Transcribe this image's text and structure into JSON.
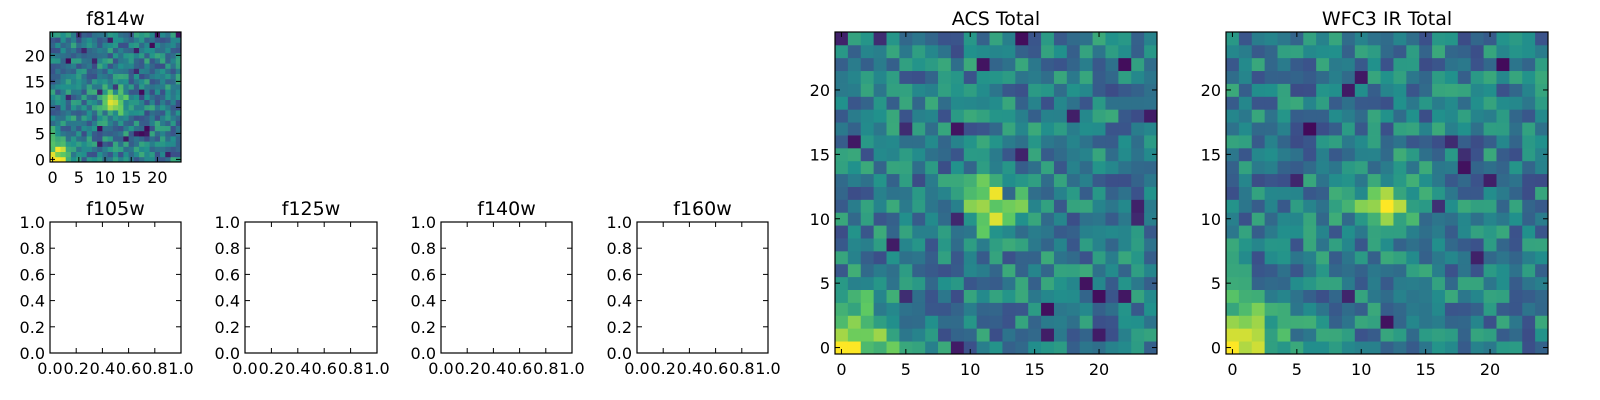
{
  "figure": {
    "colormap": "viridis",
    "colormap_stops": [
      "#440154",
      "#3b528b",
      "#21918c",
      "#5ec962",
      "#fde725"
    ]
  },
  "chart_data": [
    {
      "id": "f814w",
      "type": "heatmap",
      "title": "f814w",
      "grid_size": 25,
      "xlim": [
        -0.5,
        24.5
      ],
      "ylim": [
        -0.5,
        24.5
      ],
      "xticks": [
        0,
        5,
        10,
        15,
        20
      ],
      "yticks": [
        0,
        5,
        10,
        15,
        20
      ],
      "xtick_labels": [
        "0",
        "5",
        "10",
        "15",
        "20"
      ],
      "ytick_labels": [
        "0",
        "5",
        "10",
        "15",
        "20"
      ],
      "values_description": "25x25 noisy image; bright source near (12,11) and bright corner at origin",
      "sources": [
        {
          "x": 12,
          "y": 11,
          "amp": 0.45,
          "sigma": 1.6
        },
        {
          "x": 0,
          "y": 0,
          "amp": 0.6,
          "sigma": 2.5
        }
      ]
    },
    {
      "id": "f105w",
      "type": "empty",
      "title": "f105w",
      "xlim": [
        0,
        1
      ],
      "ylim": [
        0,
        1
      ],
      "xticks": [
        0,
        0.2,
        0.4,
        0.6,
        0.8,
        1.0
      ],
      "yticks": [
        0,
        0.2,
        0.4,
        0.6,
        0.8,
        1.0
      ],
      "xtick_labels": [
        "0.0",
        "0.2",
        "0.4",
        "0.6",
        "0.8",
        "1.0"
      ],
      "ytick_labels": [
        "0.0",
        "0.2",
        "0.4",
        "0.6",
        "0.8",
        "1.0"
      ]
    },
    {
      "id": "f125w",
      "type": "empty",
      "title": "f125w",
      "xlim": [
        0,
        1
      ],
      "ylim": [
        0,
        1
      ],
      "xticks": [
        0,
        0.2,
        0.4,
        0.6,
        0.8,
        1.0
      ],
      "yticks": [
        0,
        0.2,
        0.4,
        0.6,
        0.8,
        1.0
      ],
      "xtick_labels": [
        "0.0",
        "0.2",
        "0.4",
        "0.6",
        "0.8",
        "1.0"
      ],
      "ytick_labels": [
        "0.0",
        "0.2",
        "0.4",
        "0.6",
        "0.8",
        "1.0"
      ]
    },
    {
      "id": "f140w",
      "type": "empty",
      "title": "f140w",
      "xlim": [
        0,
        1
      ],
      "ylim": [
        0,
        1
      ],
      "xticks": [
        0,
        0.2,
        0.4,
        0.6,
        0.8,
        1.0
      ],
      "yticks": [
        0,
        0.2,
        0.4,
        0.6,
        0.8,
        1.0
      ],
      "xtick_labels": [
        "0.0",
        "0.2",
        "0.4",
        "0.6",
        "0.8",
        "1.0"
      ],
      "ytick_labels": [
        "0.0",
        "0.2",
        "0.4",
        "0.6",
        "0.8",
        "1.0"
      ]
    },
    {
      "id": "f160w",
      "type": "empty",
      "title": "f160w",
      "xlim": [
        0,
        1
      ],
      "ylim": [
        0,
        1
      ],
      "xticks": [
        0,
        0.2,
        0.4,
        0.6,
        0.8,
        1.0
      ],
      "yticks": [
        0,
        0.2,
        0.4,
        0.6,
        0.8,
        1.0
      ],
      "xtick_labels": [
        "0.0",
        "0.2",
        "0.4",
        "0.6",
        "0.8",
        "1.0"
      ],
      "ytick_labels": [
        "0.0",
        "0.2",
        "0.4",
        "0.6",
        "0.8",
        "1.0"
      ]
    },
    {
      "id": "acs-total",
      "type": "heatmap",
      "title": "ACS Total",
      "grid_size": 25,
      "xlim": [
        -0.5,
        24.5
      ],
      "ylim": [
        -0.5,
        24.5
      ],
      "xticks": [
        0,
        5,
        10,
        15,
        20
      ],
      "yticks": [
        0,
        5,
        10,
        15,
        20
      ],
      "xtick_labels": [
        "0",
        "5",
        "10",
        "15",
        "20"
      ],
      "ytick_labels": [
        "0",
        "5",
        "10",
        "15",
        "20"
      ],
      "values_description": "25x25 noisy image; bright source near (12,11) and bright corner at origin",
      "sources": [
        {
          "x": 12,
          "y": 11,
          "amp": 0.45,
          "sigma": 1.6
        },
        {
          "x": 0,
          "y": 0,
          "amp": 0.6,
          "sigma": 2.5
        }
      ]
    },
    {
      "id": "wfc3-ir-total",
      "type": "heatmap",
      "title": "WFC3 IR Total",
      "grid_size": 25,
      "xlim": [
        -0.5,
        24.5
      ],
      "ylim": [
        -0.5,
        24.5
      ],
      "xticks": [
        0,
        5,
        10,
        15,
        20
      ],
      "yticks": [
        0,
        5,
        10,
        15,
        20
      ],
      "xtick_labels": [
        "0",
        "5",
        "10",
        "15",
        "20"
      ],
      "ytick_labels": [
        "0",
        "5",
        "10",
        "15",
        "20"
      ],
      "values_description": "25x25 noisy image; bright source near (12,11) and bright corner at origin",
      "sources": [
        {
          "x": 12,
          "y": 11,
          "amp": 0.45,
          "sigma": 1.6
        },
        {
          "x": 0,
          "y": 0,
          "amp": 0.6,
          "sigma": 2.5
        }
      ]
    }
  ]
}
